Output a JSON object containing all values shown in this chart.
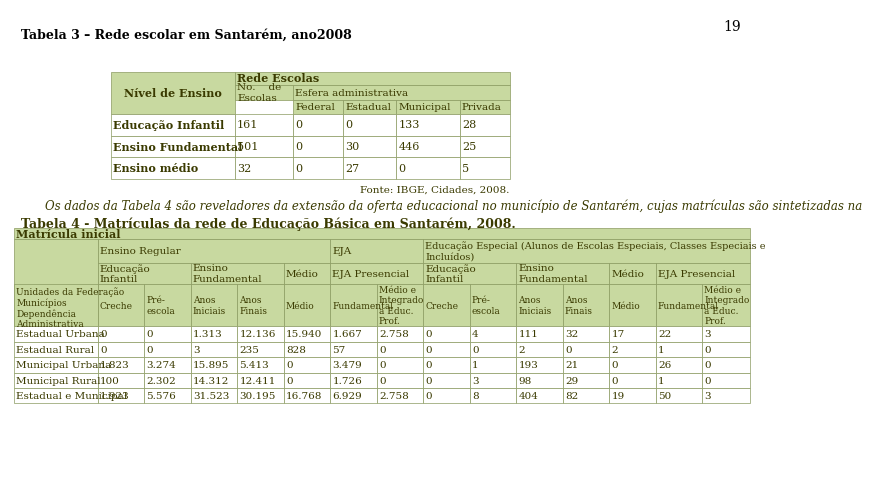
{
  "page_number": "19",
  "title3": "Tabela 3 – Rede escolar em Santarém, ano2008",
  "table3_rows": [
    [
      "Educação Infantil",
      "161",
      "0",
      "0",
      "133",
      "28"
    ],
    [
      "Ensino Fundamental",
      "501",
      "0",
      "30",
      "446",
      "25"
    ],
    [
      "Ensino médio",
      "32",
      "0",
      "27",
      "0",
      "5"
    ]
  ],
  "fonte3": "Fonte: IBGE, Cidades, 2008.",
  "paragraph": "Os dados da Tabela 4 são reveladores da extensão da oferta educacional no município de Santarém, cujas matrículas são sintetizadas na",
  "title4": "Tabela 4 - Matrículas da rede de Educação Básica em Santarém, 2008.",
  "header_color": "#c8d9a0",
  "border_color": "#8a9a60",
  "text_color": "#3a3a00",
  "table4_data_rows": [
    [
      "Estadual Urbana",
      "0",
      "0",
      "1.313",
      "12.136",
      "15.940",
      "1.667",
      "2.758",
      "0",
      "4",
      "111",
      "32",
      "17",
      "22",
      "3"
    ],
    [
      "Estadual Rural",
      "0",
      "0",
      "3",
      "235",
      "828",
      "57",
      "0",
      "0",
      "0",
      "2",
      "0",
      "2",
      "1",
      "0"
    ],
    [
      "Municipal Urbana",
      "1.823",
      "3.274",
      "15.895",
      "5.413",
      "0",
      "3.479",
      "0",
      "0",
      "1",
      "193",
      "21",
      "0",
      "26",
      "0"
    ],
    [
      "Municipal Rural",
      "100",
      "2.302",
      "14.312",
      "12.411",
      "0",
      "1.726",
      "0",
      "0",
      "3",
      "98",
      "29",
      "0",
      "1",
      "0"
    ],
    [
      "Estadual e Municipal",
      "1.923",
      "5.576",
      "31.523",
      "30.195",
      "16.768",
      "6.929",
      "2.758",
      "0",
      "8",
      "404",
      "82",
      "19",
      "50",
      "3"
    ]
  ]
}
